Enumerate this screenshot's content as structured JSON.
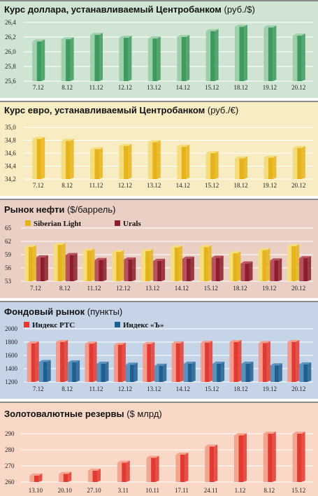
{
  "chart_data": [
    {
      "type": "bar",
      "title": "Курс доллара, устанавливаемый Центробанком",
      "unit": "(руб./$)",
      "categories": [
        "7.12",
        "8.12",
        "11.12",
        "12.12",
        "13.12",
        "14.12",
        "15.12",
        "18.12",
        "19.12",
        "20.12"
      ],
      "values": [
        26.14,
        26.17,
        26.23,
        26.19,
        26.18,
        26.2,
        26.28,
        26.34,
        26.33,
        26.22
      ],
      "ylim": [
        25.6,
        26.4
      ],
      "yticks": [
        "25,6",
        "25,8",
        "26,0",
        "26,2",
        "26,4"
      ],
      "colors": {
        "bg": "#cfe4d2",
        "bar": "#3e9a5e",
        "bar_light": "#9fd0ac",
        "grid": "#ffffff"
      }
    },
    {
      "type": "bar",
      "title": "Курс евро, устанавливаемый Центробанком",
      "unit": "(руб./€)",
      "categories": [
        "7.12",
        "8.12",
        "11.12",
        "12.12",
        "13.12",
        "14.12",
        "15.12",
        "18.12",
        "19.12",
        "20.12"
      ],
      "values": [
        34.82,
        34.79,
        34.66,
        34.71,
        34.77,
        34.7,
        34.6,
        34.52,
        34.53,
        34.68
      ],
      "ylim": [
        34.2,
        35.0
      ],
      "yticks": [
        "34,2",
        "34,4",
        "34,6",
        "34,8",
        "35,0"
      ],
      "colors": {
        "bg": "#f7ecc2",
        "bar": "#e6b41a",
        "bar_light": "#f6dd7c",
        "grid": "#ffffff"
      }
    },
    {
      "type": "bar",
      "title": "Рынок нефти",
      "unit": "($/баррель)",
      "categories": [
        "7.12",
        "8.12",
        "11.12",
        "12.12",
        "13.12",
        "14.12",
        "15.12",
        "18.12",
        "19.12",
        "20.12"
      ],
      "series": [
        {
          "name": "Siberian Light",
          "values": [
            60.7,
            61.2,
            59.9,
            59.6,
            59.8,
            60.6,
            60.7,
            59.3,
            60.0,
            60.9
          ]
        },
        {
          "name": "Urals",
          "values": [
            58.4,
            58.9,
            57.8,
            57.9,
            57.6,
            58.1,
            58.3,
            57.0,
            57.7,
            58.2
          ]
        }
      ],
      "ylim": [
        53,
        65
      ],
      "yticks": [
        "53",
        "56",
        "59",
        "62",
        "65"
      ],
      "colors": {
        "bg": "#e9cfc4",
        "s1": "#e6b41a",
        "s1_light": "#f6dd7c",
        "s2": "#8c1d2c",
        "s2_light": "#b8525e",
        "grid": "#ffffff"
      }
    },
    {
      "type": "bar",
      "title": "Фондовый рынок",
      "unit": "(пункты)",
      "categories": [
        "7.12",
        "8.12",
        "11.12",
        "12.12",
        "13.12",
        "14.12",
        "15.12",
        "18.12",
        "19.12",
        "20.12"
      ],
      "series": [
        {
          "name": "Индекс РТС",
          "values": [
            1780,
            1800,
            1775,
            1760,
            1770,
            1780,
            1790,
            1800,
            1785,
            1800
          ]
        },
        {
          "name": "Индекс «Ъ»",
          "values": [
            1500,
            1495,
            1475,
            1460,
            1445,
            1475,
            1475,
            1475,
            1450,
            1465
          ]
        }
      ],
      "ylim": [
        1200,
        2000
      ],
      "yticks": [
        "1200",
        "1400",
        "1600",
        "1800",
        "2000"
      ],
      "colors": {
        "bg": "#c6d4e8",
        "s1": "#e23a30",
        "s1_light": "#f79a8c",
        "s2": "#1f5f8f",
        "s2_light": "#5a92bd",
        "grid": "#ffffff"
      }
    },
    {
      "type": "bar",
      "title": "Золотовалютные резервы",
      "unit": "($ млрд)",
      "categories": [
        "13.10",
        "20.10",
        "27.10",
        "3.11",
        "10.11",
        "17.11",
        "24.11",
        "1.12",
        "8.12",
        "15.12"
      ],
      "values": [
        264,
        265,
        267,
        272,
        275,
        277,
        282,
        289,
        292,
        293
      ],
      "ylim": [
        260,
        290
      ],
      "yticks": [
        "260",
        "270",
        "280",
        "290"
      ],
      "colors": {
        "bg": "#f9d8c8",
        "bar": "#e23a30",
        "bar_light": "#f5a48e",
        "grid": "#ffffff"
      }
    }
  ]
}
